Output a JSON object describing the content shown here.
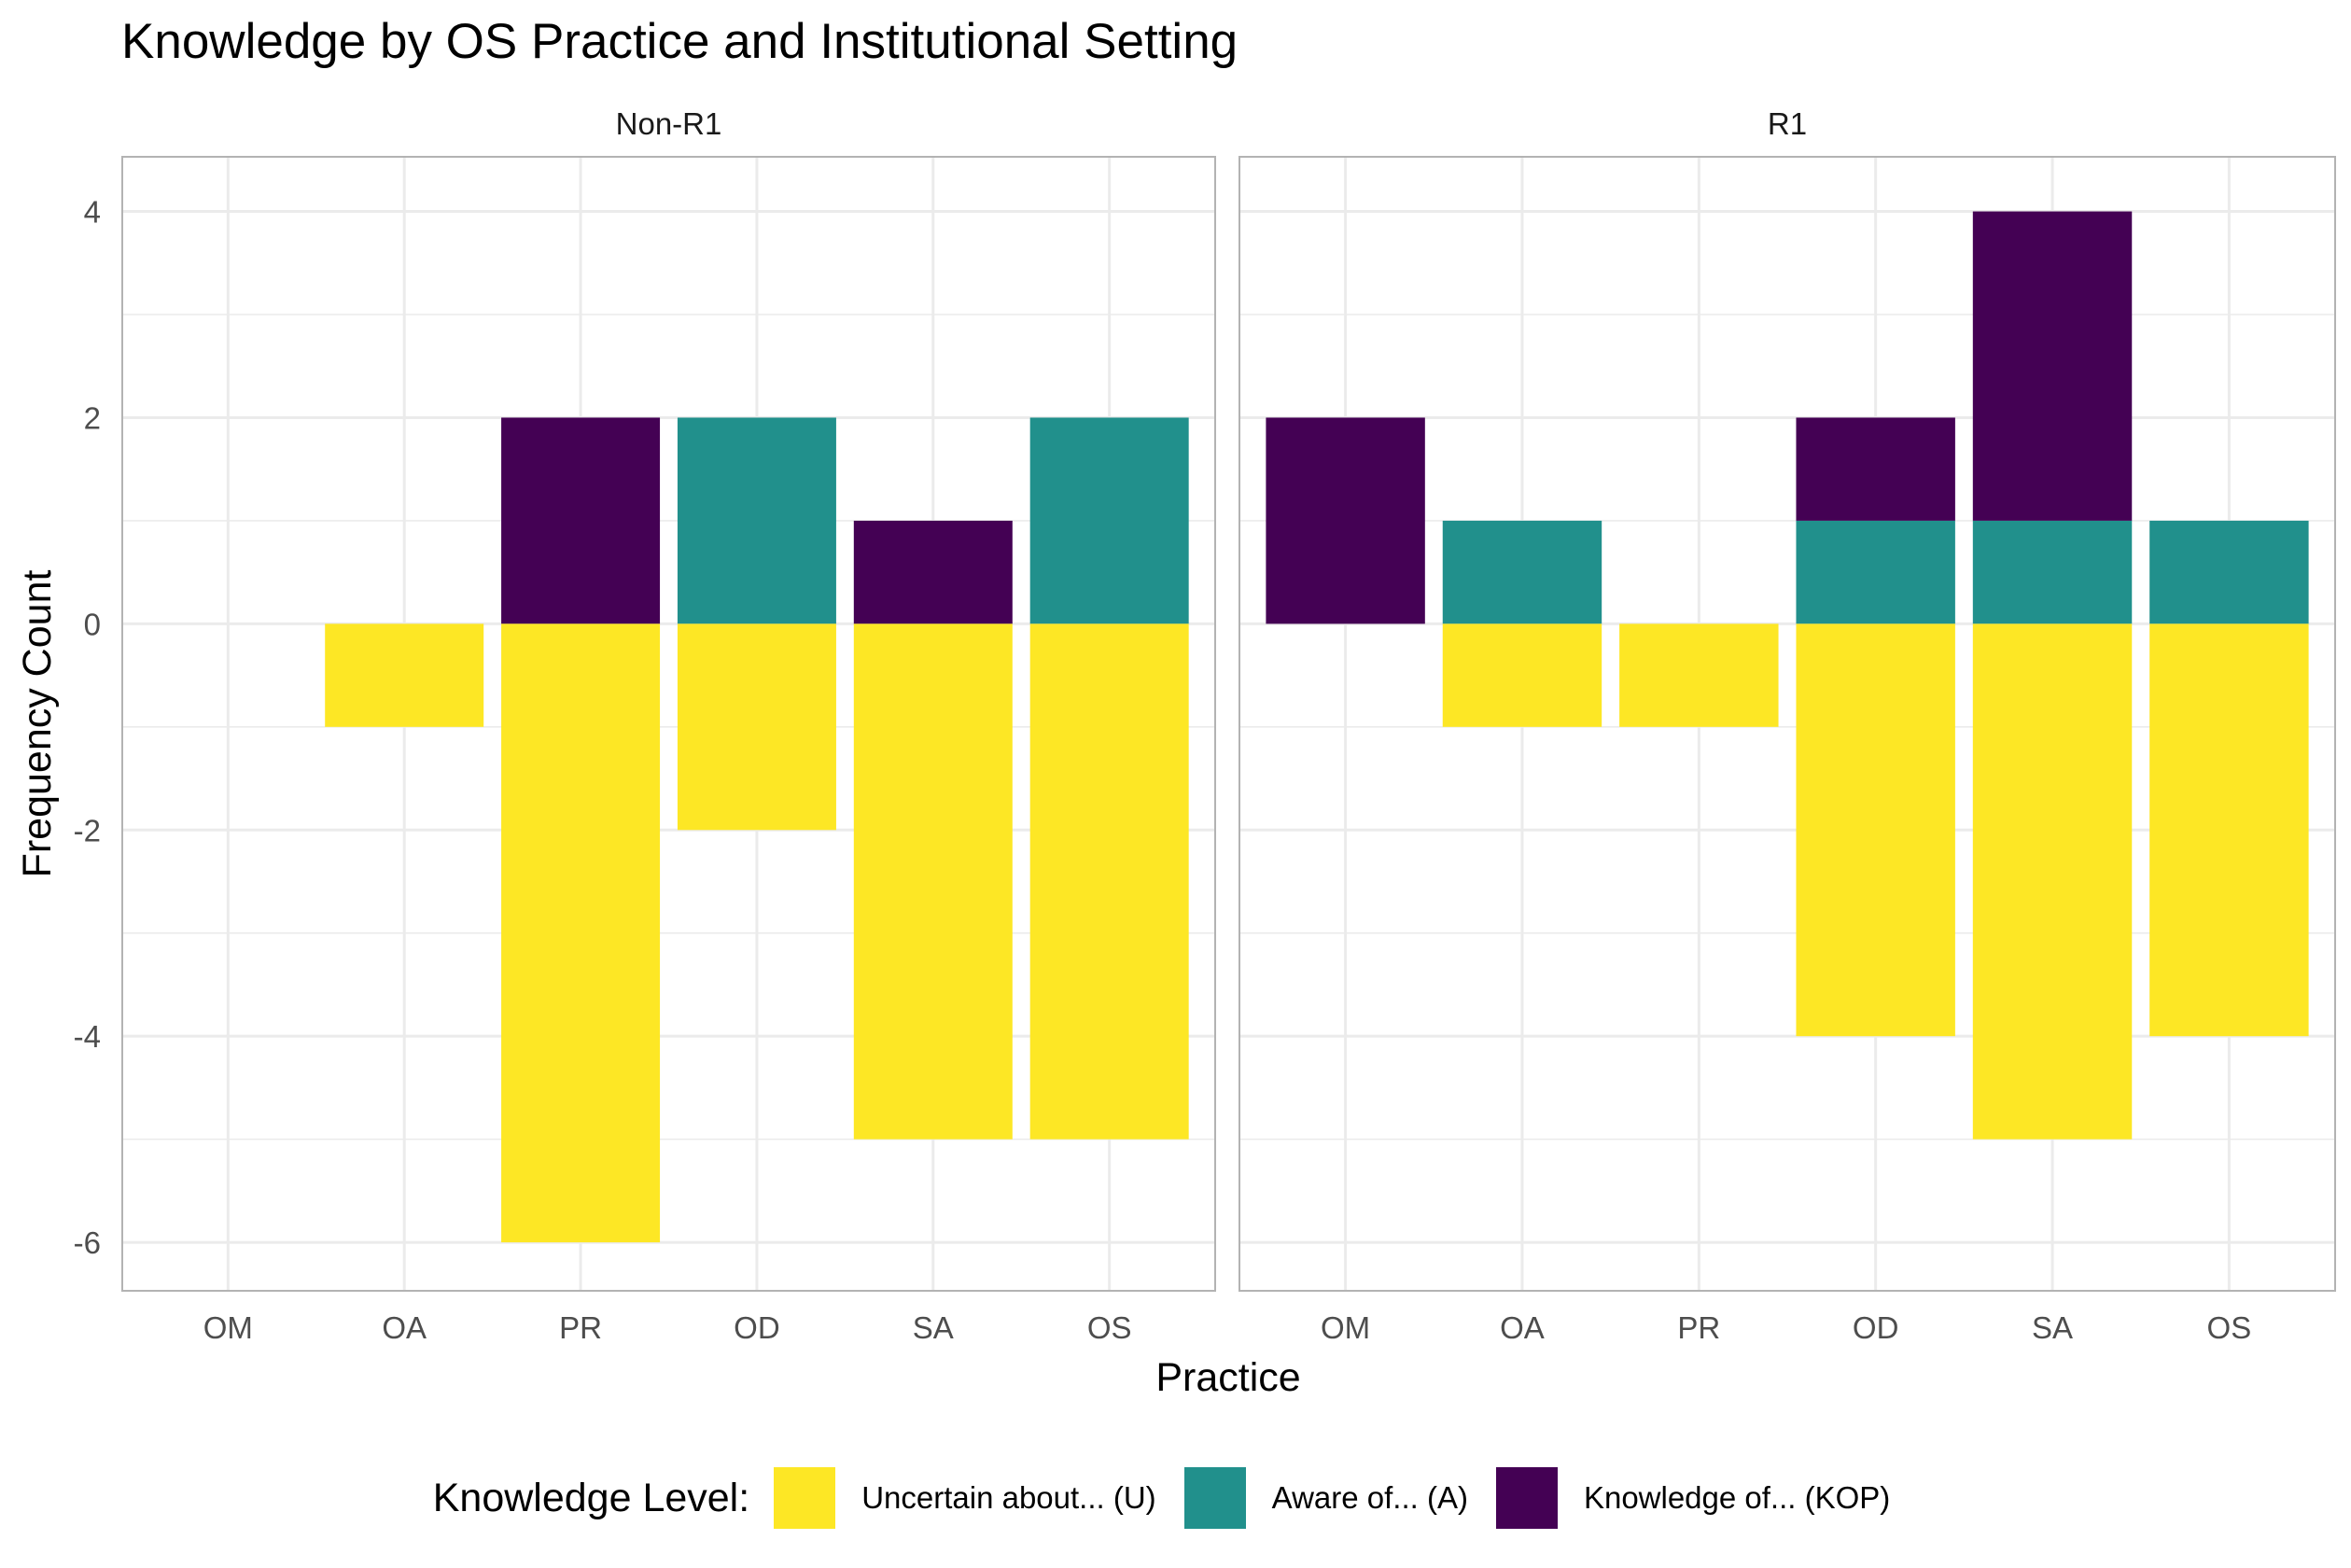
{
  "chart_data": {
    "type": "bar",
    "title": "Knowledge by OS Practice and Institutional Setting",
    "xlabel": "Practice",
    "ylabel": "Frequency Count",
    "ylim": [
      -6.47,
      4.53
    ],
    "yticks": [
      4,
      2,
      0,
      -2,
      -4,
      -6
    ],
    "categories": [
      "OM",
      "OA",
      "PR",
      "OD",
      "SA",
      "OS"
    ],
    "legend_title": "Knowledge Level:",
    "legend_position": "bottom",
    "stacking": "diverging",
    "grid": true,
    "series": [
      {
        "key": "U",
        "name": "Uncertain about... (U)",
        "color": "#FDE725",
        "direction": "negative"
      },
      {
        "key": "A",
        "name": "Aware of... (A)",
        "color": "#21908C",
        "direction": "positive"
      },
      {
        "key": "KOP",
        "name": "Knowledge of... (KOP)",
        "color": "#440154",
        "direction": "positive"
      }
    ],
    "panels": [
      {
        "label": "Non-R1",
        "values": {
          "U": [
            0,
            1,
            6,
            2,
            5,
            5
          ],
          "A": [
            0,
            0,
            0,
            2,
            0,
            2
          ],
          "KOP": [
            0,
            0,
            2,
            0,
            1,
            0
          ]
        }
      },
      {
        "label": "R1",
        "values": {
          "U": [
            0,
            1,
            1,
            4,
            5,
            4
          ],
          "A": [
            0,
            1,
            0,
            1,
            1,
            1
          ],
          "KOP": [
            2,
            0,
            0,
            1,
            3,
            0
          ]
        }
      }
    ]
  }
}
